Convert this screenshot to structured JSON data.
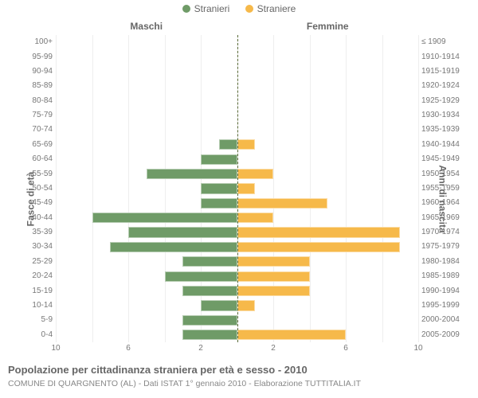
{
  "chart": {
    "type": "population-pyramid",
    "background_color": "#ffffff",
    "grid_color": "#eeeeee",
    "text_color": "#666666",
    "label_color": "#777777",
    "center_line_color": "#5a6b38",
    "xmax": 10,
    "x_ticks": [
      10,
      6,
      2,
      2,
      6,
      10
    ],
    "legend": [
      {
        "label": "Stranieri",
        "color": "#6f9b67"
      },
      {
        "label": "Straniere",
        "color": "#f6b94a"
      }
    ],
    "header_male": "Maschi",
    "header_female": "Femmine",
    "axis_left_title": "Fasce di età",
    "axis_right_title": "Anni di nascita",
    "label_fontsize": 10,
    "axis_title_fontsize": 12,
    "rows": [
      {
        "age": "100+",
        "birth": "≤ 1909",
        "male": 0,
        "female": 0
      },
      {
        "age": "95-99",
        "birth": "1910-1914",
        "male": 0,
        "female": 0
      },
      {
        "age": "90-94",
        "birth": "1915-1919",
        "male": 0,
        "female": 0
      },
      {
        "age": "85-89",
        "birth": "1920-1924",
        "male": 0,
        "female": 0
      },
      {
        "age": "80-84",
        "birth": "1925-1929",
        "male": 0,
        "female": 0
      },
      {
        "age": "75-79",
        "birth": "1930-1934",
        "male": 0,
        "female": 0
      },
      {
        "age": "70-74",
        "birth": "1935-1939",
        "male": 0,
        "female": 0
      },
      {
        "age": "65-69",
        "birth": "1940-1944",
        "male": 1,
        "female": 1
      },
      {
        "age": "60-64",
        "birth": "1945-1949",
        "male": 2,
        "female": 0
      },
      {
        "age": "55-59",
        "birth": "1950-1954",
        "male": 5,
        "female": 2
      },
      {
        "age": "50-54",
        "birth": "1955-1959",
        "male": 2,
        "female": 1
      },
      {
        "age": "45-49",
        "birth": "1960-1964",
        "male": 2,
        "female": 5
      },
      {
        "age": "40-44",
        "birth": "1965-1969",
        "male": 8,
        "female": 2
      },
      {
        "age": "35-39",
        "birth": "1970-1974",
        "male": 6,
        "female": 9
      },
      {
        "age": "30-34",
        "birth": "1975-1979",
        "male": 7,
        "female": 9
      },
      {
        "age": "25-29",
        "birth": "1980-1984",
        "male": 3,
        "female": 4
      },
      {
        "age": "20-24",
        "birth": "1985-1989",
        "male": 4,
        "female": 4
      },
      {
        "age": "15-19",
        "birth": "1990-1994",
        "male": 3,
        "female": 4
      },
      {
        "age": "10-14",
        "birth": "1995-1999",
        "male": 2,
        "female": 1
      },
      {
        "age": "5-9",
        "birth": "2000-2004",
        "male": 3,
        "female": 0
      },
      {
        "age": "0-4",
        "birth": "2005-2009",
        "male": 3,
        "female": 6
      }
    ]
  },
  "footer": {
    "title": "Popolazione per cittadinanza straniera per età e sesso - 2010",
    "subtitle": "COMUNE DI QUARGNENTO (AL) - Dati ISTAT 1° gennaio 2010 - Elaborazione TUTTITALIA.IT"
  }
}
